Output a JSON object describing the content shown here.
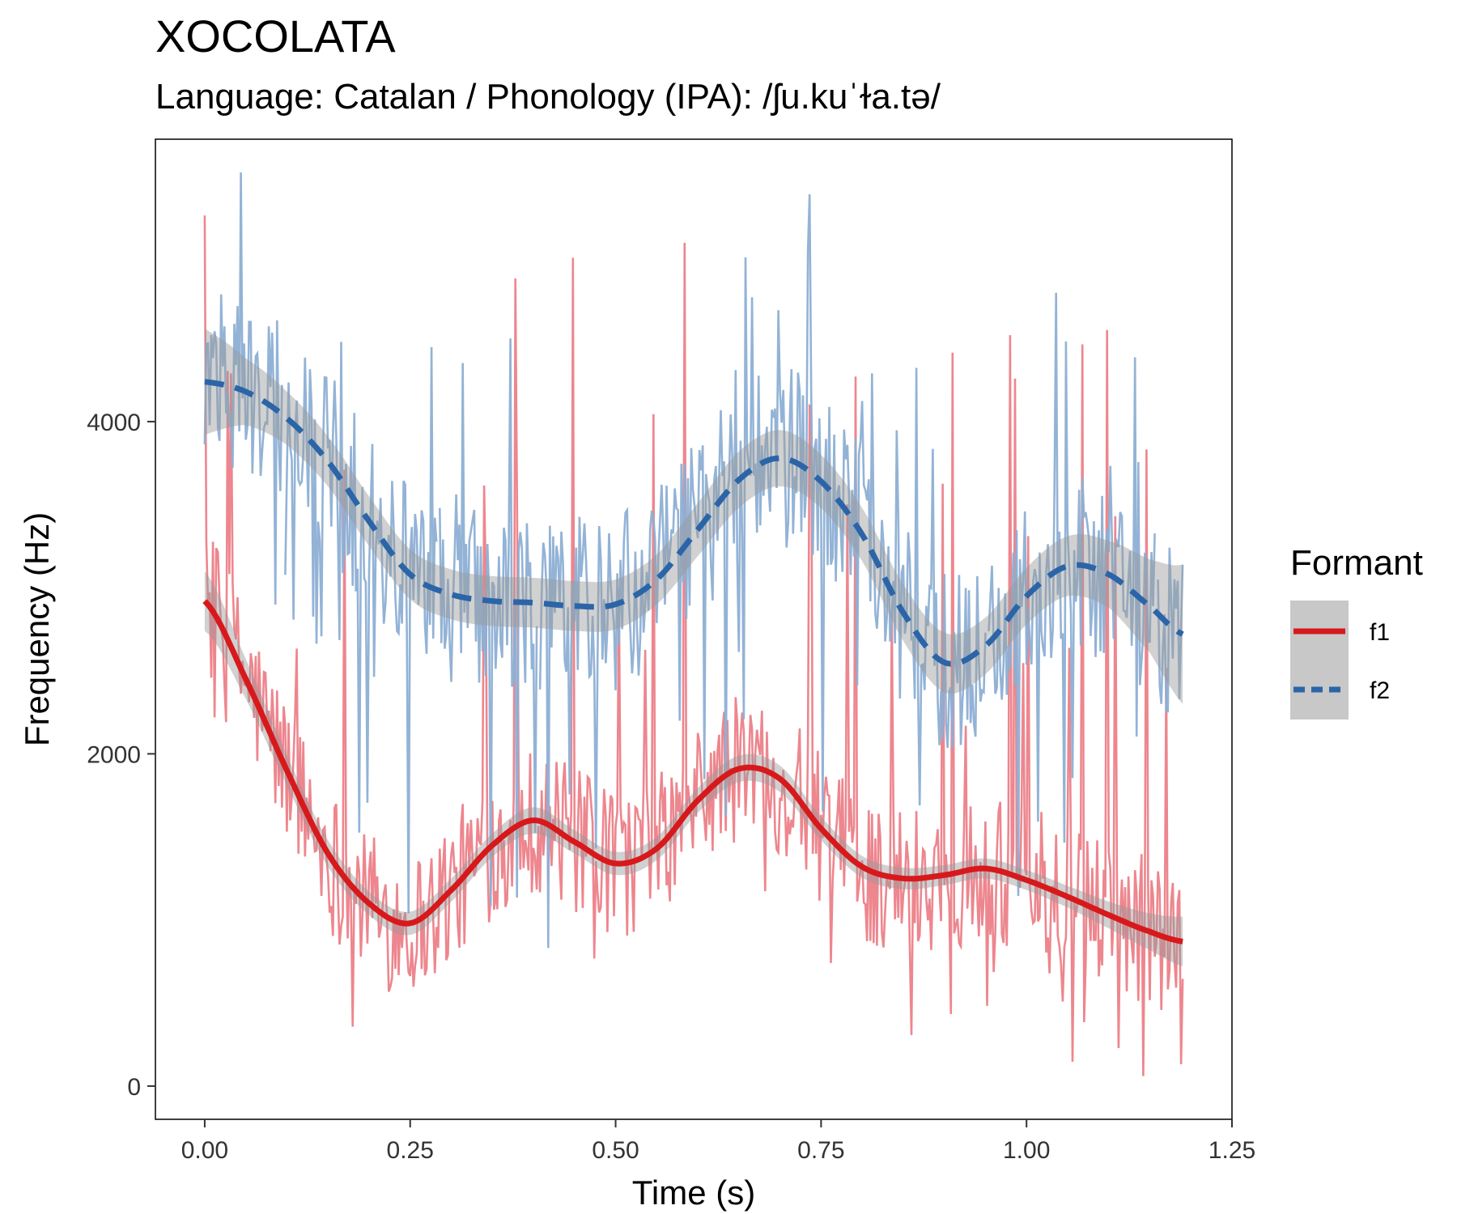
{
  "chart_data": {
    "type": "line",
    "title": "XOCOLATA",
    "subtitle": "Language: Catalan / Phonology (IPA): /ʃu.kuˈɫa.tə/",
    "xlabel": "Time (s)",
    "ylabel": "Frequency (Hz)",
    "xlim": [
      -0.06,
      1.25
    ],
    "ylim": [
      -200,
      5700
    ],
    "x_ticks": [
      0.0,
      0.25,
      0.5,
      0.75,
      1.0,
      1.25
    ],
    "x_tick_labels": [
      "0.00",
      "0.25",
      "0.50",
      "0.75",
      "1.00",
      "1.25"
    ],
    "y_ticks": [
      0,
      2000,
      4000
    ],
    "y_tick_labels": [
      "0",
      "2000",
      "4000"
    ],
    "grid": false,
    "legend": {
      "title": "Formant",
      "position": "right"
    },
    "series": [
      {
        "name": "f1",
        "color": "#d7191c",
        "raw_color": "#ec7f88",
        "line_style": "solid",
        "raw_x_max": 1.19,
        "raw_step": 0.002,
        "smooth": {
          "x": [
            0.0,
            0.05,
            0.1,
            0.15,
            0.2,
            0.25,
            0.3,
            0.35,
            0.4,
            0.45,
            0.5,
            0.55,
            0.6,
            0.65,
            0.7,
            0.75,
            0.8,
            0.85,
            0.9,
            0.95,
            1.0,
            1.05,
            1.1,
            1.15,
            1.19
          ],
          "y": [
            2920,
            2450,
            1900,
            1400,
            1100,
            980,
            1180,
            1450,
            1600,
            1470,
            1340,
            1430,
            1720,
            1910,
            1850,
            1550,
            1320,
            1250,
            1270,
            1310,
            1240,
            1140,
            1030,
            930,
            870
          ]
        },
        "ci_halfwidth": [
          180,
          120,
          90,
          80,
          70,
          70,
          70,
          70,
          80,
          70,
          70,
          70,
          75,
          80,
          80,
          70,
          65,
          65,
          60,
          60,
          60,
          65,
          80,
          110,
          150
        ]
      },
      {
        "name": "f2",
        "color": "#2b65a8",
        "raw_color": "#8dafd4",
        "line_style": "dashed",
        "raw_x_max": 1.19,
        "raw_step": 0.002,
        "smooth": {
          "x": [
            0.0,
            0.05,
            0.1,
            0.15,
            0.2,
            0.25,
            0.3,
            0.35,
            0.4,
            0.45,
            0.5,
            0.55,
            0.6,
            0.65,
            0.7,
            0.75,
            0.8,
            0.85,
            0.9,
            0.95,
            1.0,
            1.05,
            1.1,
            1.15,
            1.19
          ],
          "y": [
            4240,
            4180,
            4020,
            3760,
            3400,
            3080,
            2960,
            2920,
            2910,
            2890,
            2900,
            3050,
            3350,
            3650,
            3780,
            3640,
            3320,
            2850,
            2550,
            2650,
            2950,
            3130,
            3080,
            2890,
            2720
          ]
        },
        "ci_halfwidth": [
          320,
          200,
          160,
          150,
          150,
          150,
          150,
          150,
          150,
          150,
          150,
          150,
          160,
          170,
          170,
          160,
          160,
          170,
          180,
          170,
          170,
          180,
          200,
          280,
          420
        ]
      }
    ]
  }
}
